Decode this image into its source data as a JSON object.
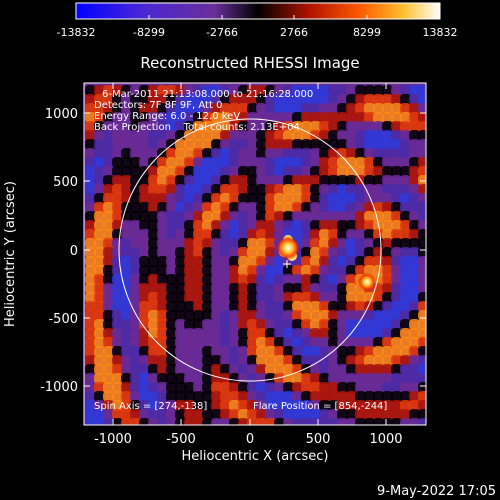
{
  "colorbar": {
    "tick_labels": [
      "-13832",
      "-8299",
      "-2766",
      "2766",
      "8299",
      "13832"
    ],
    "colors": [
      "#0000ff",
      "#5a2bd6",
      "#7a3aa0",
      "#000000",
      "#c81800",
      "#ff6a00",
      "#ffcc33",
      "#ffffff"
    ]
  },
  "title": "Reconstructed RHESSI Image",
  "info": {
    "line1": "6-Mar-2011 21:13:08.000 to 21:16:28.000",
    "line2": "Detectors: 7F 8F 9F, Att 0",
    "line3": "Energy Range: 6.0 - 12.0 keV",
    "line4": "Back Projection    Total counts: 2.13E+04"
  },
  "footer_left": "Spin Axis = [274,-138]",
  "footer_right": "Flare Position = [854,-244]",
  "axes": {
    "xlabel": "Heliocentric X (arcsec)",
    "ylabel": "Heliocentric Y (arcsec)",
    "x_ticks": [
      "-1000",
      "-500",
      "0",
      "500",
      "1000"
    ],
    "y_ticks": [
      "1000",
      "500",
      "0",
      "-500",
      "-1000"
    ],
    "x_range": [
      -1280,
      1280
    ],
    "y_range": [
      -1280,
      1280
    ]
  },
  "timestamp": "9-May-2022 17:05",
  "image_description": {
    "solar_limb_radius_arcsec": 960,
    "spin_axis_arcsec": [
      274,
      -138
    ],
    "flare_position_arcsec": [
      854,
      -244
    ]
  }
}
